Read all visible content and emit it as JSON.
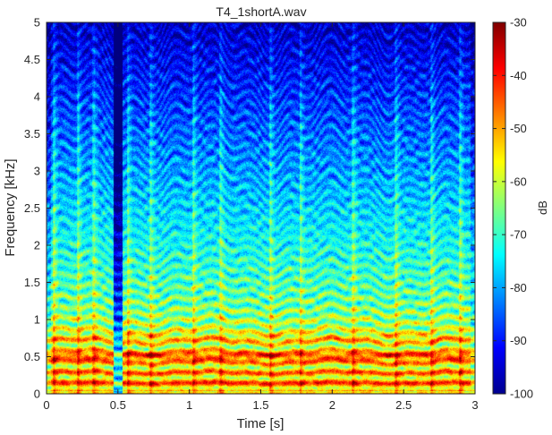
{
  "chart_data": {
    "type": "heatmap",
    "title": "T4_1shortA.wav",
    "xlabel": "Time [s]",
    "ylabel": "Frequency [kHz]",
    "xlim": [
      0,
      3
    ],
    "ylim": [
      0,
      5
    ],
    "xticks": [
      {
        "value": 0,
        "label": "0"
      },
      {
        "value": 0.5,
        "label": "0.5"
      },
      {
        "value": 1,
        "label": "1"
      },
      {
        "value": 1.5,
        "label": "1.5"
      },
      {
        "value": 2,
        "label": "2"
      },
      {
        "value": 2.5,
        "label": "2.5"
      },
      {
        "value": 3,
        "label": "3"
      }
    ],
    "yticks": [
      {
        "value": 0,
        "label": "0"
      },
      {
        "value": 0.5,
        "label": "0.5"
      },
      {
        "value": 1,
        "label": "1"
      },
      {
        "value": 1.5,
        "label": "1.5"
      },
      {
        "value": 2,
        "label": "2"
      },
      {
        "value": 2.5,
        "label": "2.5"
      },
      {
        "value": 3,
        "label": "3"
      },
      {
        "value": 3.5,
        "label": "3.5"
      },
      {
        "value": 4,
        "label": "4"
      },
      {
        "value": 4.5,
        "label": "4.5"
      },
      {
        "value": 5,
        "label": "5"
      }
    ],
    "colorbar": {
      "label": "dB",
      "colormap": "jet",
      "range": [
        -100,
        -30
      ],
      "ticks": [
        {
          "value": -30,
          "label": "-30"
        },
        {
          "value": -40,
          "label": "-40"
        },
        {
          "value": -50,
          "label": "-50"
        },
        {
          "value": -60,
          "label": "-60"
        },
        {
          "value": -70,
          "label": "-70"
        },
        {
          "value": -80,
          "label": "-80"
        },
        {
          "value": -90,
          "label": "-90"
        },
        {
          "value": -100,
          "label": "-100"
        }
      ]
    },
    "features": {
      "harmonic_spacing_khz": 0.14,
      "strongest_band_khz": 0.5,
      "pauses_s": [
        [
          0.47,
          0.53
        ]
      ],
      "onsets_s": [
        0.05,
        0.22,
        0.33,
        0.57,
        0.73,
        1.03,
        1.22,
        1.57,
        1.78,
        2.15,
        2.45,
        2.7,
        2.9
      ]
    }
  }
}
